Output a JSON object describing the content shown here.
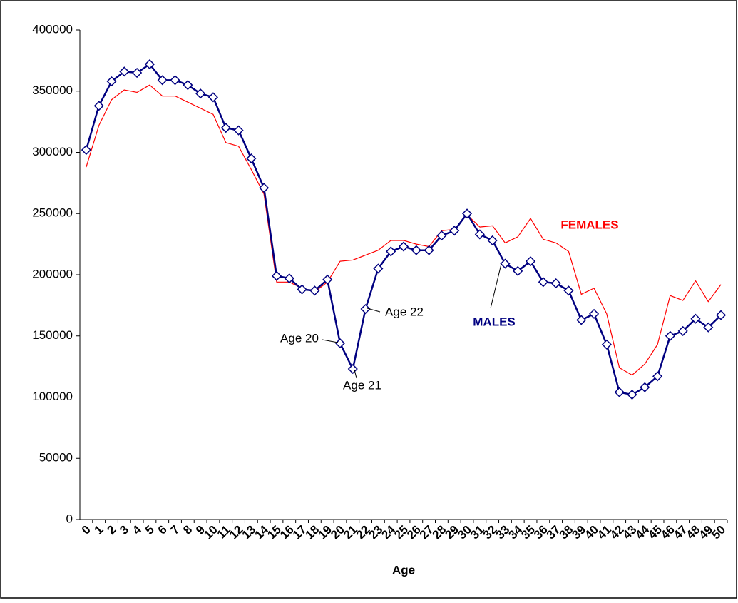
{
  "chart_data": {
    "type": "line",
    "x_label": "Age",
    "categories": [
      "0",
      "1",
      "2",
      "3",
      "4",
      "5",
      "6",
      "7",
      "8",
      "9",
      "10",
      "11",
      "12",
      "13",
      "14",
      "15",
      "16",
      "17",
      "18",
      "19",
      "20",
      "21",
      "22",
      "23",
      "24",
      "25",
      "26",
      "27",
      "28",
      "29",
      "30",
      "31",
      "32",
      "33",
      "34",
      "35",
      "36",
      "37",
      "38",
      "39",
      "40",
      "41",
      "42",
      "43",
      "44",
      "45",
      "46",
      "47",
      "48",
      "49",
      "50"
    ],
    "series": [
      {
        "name": "FEMALES",
        "color": "#ff0000",
        "marker": false,
        "values": [
          288000,
          322000,
          343000,
          351000,
          349000,
          355000,
          346000,
          346000,
          341000,
          336000,
          331000,
          308000,
          305000,
          286000,
          266000,
          194000,
          194000,
          189000,
          186000,
          194000,
          211000,
          212000,
          216000,
          220000,
          228000,
          228000,
          225000,
          223000,
          236000,
          237000,
          249000,
          239000,
          240000,
          226000,
          231000,
          246000,
          229000,
          226000,
          219000,
          184000,
          189000,
          168000,
          124000,
          118000,
          127000,
          143000,
          183000,
          179000,
          195000,
          178000,
          192000
        ]
      },
      {
        "name": "MALES",
        "color": "#000080",
        "marker": true,
        "values": [
          302000,
          338000,
          358000,
          366000,
          365000,
          372000,
          359000,
          359000,
          355000,
          348000,
          345000,
          320000,
          318000,
          295000,
          271000,
          199000,
          197000,
          188000,
          187000,
          196000,
          144000,
          123000,
          172000,
          205000,
          219000,
          223000,
          220000,
          220000,
          232000,
          236000,
          250000,
          233000,
          228000,
          209000,
          203000,
          211000,
          194000,
          193000,
          187000,
          163000,
          168000,
          143000,
          104000,
          102000,
          108000,
          117000,
          150000,
          154000,
          164000,
          157000,
          167000
        ]
      }
    ],
    "annotations": [
      {
        "text": "Age 20"
      },
      {
        "text": "Age 21"
      },
      {
        "text": "Age 22"
      }
    ],
    "ylim": [
      0,
      400000
    ],
    "yticks": [
      0,
      50000,
      100000,
      150000,
      200000,
      250000,
      300000,
      350000,
      400000
    ],
    "grid": false
  }
}
